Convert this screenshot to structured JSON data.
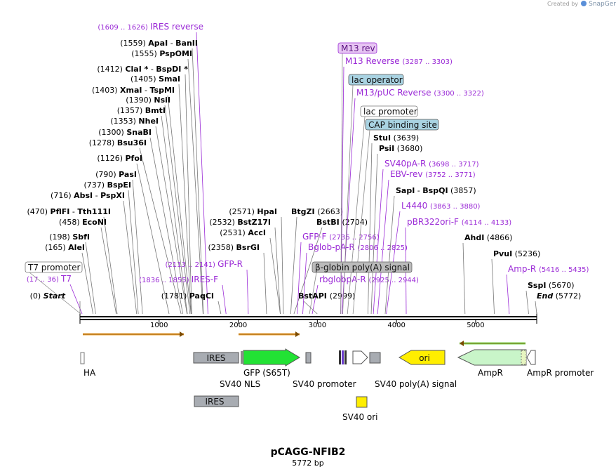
{
  "header": {
    "credit_prefix": "Created by",
    "credit_brand": "SnapGene"
  },
  "plasmid": {
    "name": "pCAGG-NFIB2",
    "size_label": "5772 bp",
    "length": 5772
  },
  "colors": {
    "site": "#000000",
    "primer": "#9a29d6",
    "ruler": "#000000"
  },
  "ruler_ticks": [
    1000,
    2000,
    3000,
    4000,
    5000
  ],
  "left_labels": [
    {
      "coord": "(1609 .. 1626)",
      "name": "IRES reverse",
      "kind": "primer",
      "pos": 1617
    },
    {
      "coord": "(1559)",
      "name": "ApaI",
      "sep": "-",
      "alt": "BanII",
      "kind": "site",
      "pos": 1559
    },
    {
      "coord": "(1555)",
      "name": "PspOMI",
      "kind": "site",
      "pos": 1555
    },
    {
      "coord": "(1412)",
      "name": "ClaI *",
      "sep": "-",
      "alt": "BspDI *",
      "kind": "site",
      "pos": 1412
    },
    {
      "coord": "(1405)",
      "name": "SmaI",
      "kind": "site",
      "pos": 1405
    },
    {
      "coord": "(1403)",
      "name": "XmaI",
      "sep": "-",
      "alt": "TspMI",
      "kind": "site",
      "pos": 1403
    },
    {
      "coord": "(1390)",
      "name": "NsiI",
      "kind": "site",
      "pos": 1390
    },
    {
      "coord": "(1357)",
      "name": "BmtI",
      "kind": "site",
      "pos": 1357
    },
    {
      "coord": "(1353)",
      "name": "NheI",
      "kind": "site",
      "pos": 1353
    },
    {
      "coord": "(1300)",
      "name": "SnaBI",
      "kind": "site",
      "pos": 1300
    },
    {
      "coord": "(1278)",
      "name": "Bsu36I",
      "kind": "site",
      "pos": 1278
    },
    {
      "coord": "(1126)",
      "name": "PfoI",
      "kind": "site",
      "pos": 1126
    },
    {
      "coord": "(790)",
      "name": "PasI",
      "kind": "site",
      "pos": 790
    },
    {
      "coord": "(737)",
      "name": "BspEI",
      "kind": "site",
      "pos": 737
    },
    {
      "coord": "(716)",
      "name": "AbsI",
      "sep": "-",
      "alt": "PspXI",
      "kind": "site",
      "pos": 716
    },
    {
      "coord": "(470)",
      "name": "PflFI",
      "sep": "-",
      "alt": "Tth111I",
      "kind": "site",
      "pos": 470
    },
    {
      "coord": "(458)",
      "name": "EcoNI",
      "kind": "site",
      "pos": 458
    },
    {
      "coord": "(198)",
      "name": "SbfI",
      "kind": "site",
      "pos": 198
    },
    {
      "coord": "(165)",
      "name": "AleI",
      "kind": "site",
      "pos": 165
    },
    {
      "coord": "(17 .. 36)",
      "name": "T7",
      "kind": "primer",
      "pos": 27
    },
    {
      "coord": "(0)",
      "name": "Start",
      "kind": "ends",
      "pos": 0
    }
  ],
  "middle_labels": [
    {
      "coord": "(2113 .. 2141)",
      "name": "GFP-R",
      "kind": "primer",
      "pos": 2127
    },
    {
      "coord": "(1836 .. 1855)",
      "name": "IRES-F",
      "kind": "primer",
      "pos": 1846
    },
    {
      "coord": "(1781)",
      "name": "PaqCI",
      "kind": "site",
      "pos": 1781
    },
    {
      "coord": "(2571)",
      "name": "HpaI",
      "kind": "site",
      "pos": 2571
    },
    {
      "coord": "(2532)",
      "name": "BstZ17I",
      "kind": "site",
      "pos": 2532
    },
    {
      "coord": "(2531)",
      "name": "AccI",
      "kind": "site",
      "pos": 2531
    },
    {
      "coord": "(2358)",
      "name": "BsrGI",
      "kind": "site",
      "pos": 2358
    },
    {
      "coord": "(2663)",
      "name": "BtgZI",
      "kind": "site",
      "pos": 2663
    },
    {
      "coord": "(2704)",
      "name": "BstBI",
      "kind": "site",
      "pos": 2704
    },
    {
      "coord": "(2736 .. 2756)",
      "name": "GFP-F",
      "kind": "primer",
      "pos": 2746
    },
    {
      "coord": "(2806 .. 2825)",
      "name": "Bglob-pA-R",
      "kind": "primer",
      "pos": 2815
    },
    {
      "coord": "(2925 .. 2944)",
      "name": "rbglobpA-R",
      "kind": "primer",
      "pos": 2935
    },
    {
      "coord": "(2999)",
      "name": "BstAPI",
      "kind": "site",
      "pos": 2999
    }
  ],
  "right_labels": [
    {
      "coord": "(3287 .. 3303)",
      "name": "M13 Reverse",
      "kind": "primer",
      "pos": 3295
    },
    {
      "coord": "(3300 .. 3322)",
      "name": "M13/pUC Reverse",
      "kind": "primer",
      "pos": 3311
    },
    {
      "coord": "(3639)",
      "name": "StuI",
      "kind": "site",
      "pos": 3639
    },
    {
      "coord": "(3680)",
      "name": "PsiI",
      "kind": "site",
      "pos": 3680
    },
    {
      "coord": "(3698 .. 3717)",
      "name": "SV40pA-R",
      "kind": "primer",
      "pos": 3707
    },
    {
      "coord": "(3752 .. 3771)",
      "name": "EBV-rev",
      "kind": "primer",
      "pos": 3761
    },
    {
      "coord": "(3857)",
      "name": "SapI",
      "sep": "-",
      "alt": "BspQI",
      "kind": "site",
      "pos": 3857
    },
    {
      "coord": "(3863 .. 3880)",
      "name": "L4440",
      "kind": "primer",
      "pos": 3871
    },
    {
      "coord": "(4114 .. 4133)",
      "name": "pBR322ori-F",
      "kind": "primer",
      "pos": 4123
    },
    {
      "coord": "(4866)",
      "name": "AhdI",
      "kind": "site",
      "pos": 4866
    },
    {
      "coord": "(5236)",
      "name": "PvuI",
      "kind": "site",
      "pos": 5236
    },
    {
      "coord": "(5416 .. 5435)",
      "name": "Amp-R",
      "kind": "primer",
      "pos": 5425
    },
    {
      "coord": "(5670)",
      "name": "SspI",
      "kind": "site",
      "pos": 5670
    },
    {
      "coord": "(5772)",
      "name": "End",
      "kind": "ends",
      "pos": 5772
    }
  ],
  "boxed_features": [
    {
      "name": "M13 rev",
      "kind": "primer-box",
      "pos": 3295
    },
    {
      "name": "lac operator",
      "kind": "blue-box",
      "pos": 3320
    },
    {
      "name": "lac promoter",
      "kind": "white-box",
      "pos": 3380
    },
    {
      "name": "CAP binding site",
      "kind": "blue-box",
      "pos": 3450
    },
    {
      "name": "T7 promoter",
      "kind": "white-box",
      "pos": 10
    },
    {
      "name": "β-globin poly(A) signal",
      "kind": "grey-box",
      "pos": 2900
    }
  ],
  "features": [
    {
      "name": "HA",
      "kind": "small"
    },
    {
      "name": "IRES",
      "kind": "grey"
    },
    {
      "name": "GFP (S65T)",
      "kind": "green-arrow"
    },
    {
      "name": "SV40 NLS",
      "kind": "label"
    },
    {
      "name": "SV40 promoter",
      "kind": "label"
    },
    {
      "name": "SV40 poly(A) signal",
      "kind": "grey"
    },
    {
      "name": "ori",
      "kind": "yellow-arrow"
    },
    {
      "name": "AmpR",
      "kind": "green-arrow"
    },
    {
      "name": "AmpR promoter",
      "kind": "white"
    },
    {
      "name": "IRES",
      "kind": "grey"
    },
    {
      "name": "SV40 ori",
      "kind": "yellow"
    }
  ]
}
